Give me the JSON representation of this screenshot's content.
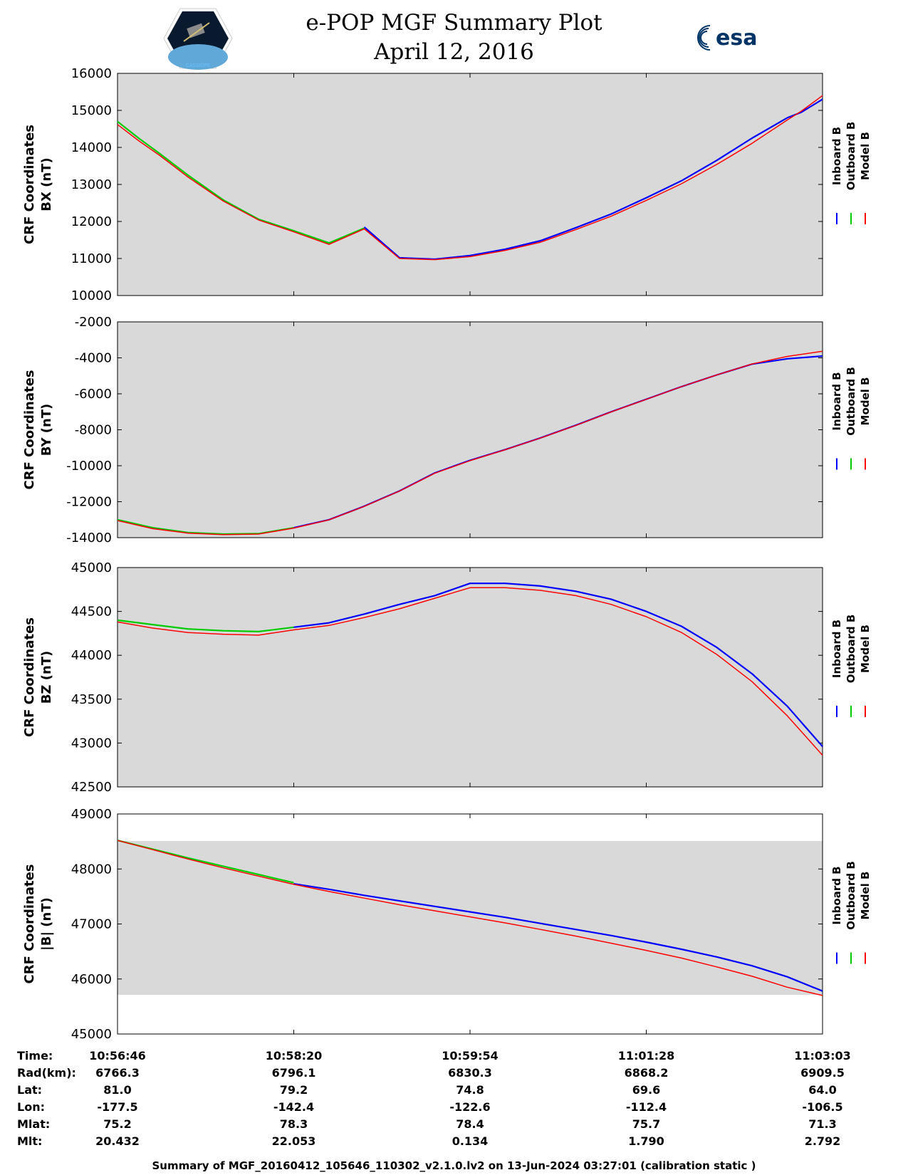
{
  "header": {
    "title_line1": "e-POP MGF Summary Plot",
    "title_line2": "April 12, 2016",
    "logo_left": "CASSIOPE",
    "logo_right": "esa"
  },
  "colors": {
    "inboard": "#0000ff",
    "outboard": "#00cc00",
    "model": "#ff0000",
    "bg": "#d9d9d9"
  },
  "legend": [
    "Inboard B",
    "Outboard B",
    "Model B"
  ],
  "chart_data": [
    {
      "type": "line",
      "ylabel": [
        "CRF Coordinates",
        "BX (nT)"
      ],
      "ylim": [
        10000,
        16000
      ],
      "yticks": [
        "10000",
        "11000",
        "12000",
        "13000",
        "14000",
        "15000",
        "16000"
      ],
      "x": [
        0,
        0.03,
        0.06,
        0.1,
        0.15,
        0.2,
        0.25,
        0.3,
        0.35,
        0.4,
        0.45,
        0.5,
        0.55,
        0.6,
        0.65,
        0.7,
        0.75,
        0.8,
        0.85,
        0.9,
        0.95,
        0.97,
        1.0
      ],
      "series": [
        {
          "name": "Inboard B",
          "values": [
            null,
            null,
            null,
            null,
            null,
            null,
            null,
            null,
            11850,
            11020,
            10980,
            11080,
            11250,
            11480,
            11830,
            12200,
            12640,
            13100,
            13650,
            14250,
            14800,
            14950,
            15300
          ]
        },
        {
          "name": "Outboard B",
          "values": [
            14700,
            14250,
            13830,
            13250,
            12580,
            12060,
            11750,
            11420,
            11820,
            null,
            null,
            null,
            null,
            null,
            null,
            null,
            null,
            null,
            null,
            null,
            null,
            null,
            null
          ]
        },
        {
          "name": "Model B",
          "values": [
            14620,
            14180,
            13780,
            13200,
            12550,
            12040,
            11720,
            11380,
            11800,
            11000,
            10970,
            11050,
            11220,
            11440,
            11780,
            12140,
            12570,
            13020,
            13540,
            14110,
            14740,
            14980,
            15400
          ]
        }
      ]
    },
    {
      "type": "line",
      "ylabel": [
        "CRF Coordinates",
        "BY (nT)"
      ],
      "ylim": [
        -14000,
        -2000
      ],
      "yticks": [
        "-14000",
        "-12000",
        "-10000",
        "-8000",
        "-6000",
        "-4000",
        "-2000"
      ],
      "x": [
        0,
        0.05,
        0.1,
        0.15,
        0.2,
        0.25,
        0.3,
        0.35,
        0.4,
        0.45,
        0.5,
        0.55,
        0.6,
        0.65,
        0.7,
        0.75,
        0.8,
        0.85,
        0.9,
        0.95,
        1.0
      ],
      "series": [
        {
          "name": "Inboard B",
          "values": [
            null,
            null,
            null,
            null,
            null,
            -13450,
            -13000,
            -12250,
            -11400,
            -10400,
            -9700,
            -9100,
            -8450,
            -7750,
            -7000,
            -6300,
            -5600,
            -4950,
            -4350,
            -4050,
            -3900
          ]
        },
        {
          "name": "Outboard B",
          "values": [
            -13000,
            -13450,
            -13720,
            -13800,
            -13780,
            -13450,
            null,
            null,
            null,
            null,
            null,
            null,
            null,
            null,
            null,
            null,
            null,
            null,
            null,
            null,
            null
          ]
        },
        {
          "name": "Model B",
          "values": [
            -13050,
            -13500,
            -13750,
            -13830,
            -13800,
            -13470,
            -13010,
            -12260,
            -11410,
            -10420,
            -9720,
            -9110,
            -8460,
            -7760,
            -7010,
            -6310,
            -5600,
            -4950,
            -4340,
            -3920,
            -3630
          ]
        }
      ]
    },
    {
      "type": "line",
      "ylabel": [
        "CRF Coordinates",
        "BZ (nT)"
      ],
      "ylim": [
        42500,
        45000
      ],
      "yticks": [
        "42500",
        "43000",
        "43500",
        "44000",
        "44500",
        "45000"
      ],
      "x": [
        0,
        0.05,
        0.1,
        0.15,
        0.2,
        0.25,
        0.3,
        0.35,
        0.4,
        0.45,
        0.5,
        0.55,
        0.6,
        0.65,
        0.7,
        0.75,
        0.8,
        0.85,
        0.9,
        0.95,
        1.0
      ],
      "series": [
        {
          "name": "Inboard B",
          "values": [
            null,
            null,
            null,
            null,
            null,
            44320,
            44370,
            44470,
            44580,
            44680,
            44820,
            44820,
            44790,
            44730,
            44640,
            44500,
            44330,
            44090,
            43790,
            43420,
            42960
          ]
        },
        {
          "name": "Outboard B",
          "values": [
            44400,
            44350,
            44300,
            44280,
            44270,
            44320,
            null,
            null,
            null,
            null,
            null,
            null,
            null,
            null,
            null,
            null,
            null,
            null,
            null,
            null,
            null
          ]
        },
        {
          "name": "Model B",
          "values": [
            44380,
            44310,
            44260,
            44240,
            44230,
            44290,
            44340,
            44430,
            44530,
            44650,
            44770,
            44770,
            44740,
            44680,
            44580,
            44440,
            44260,
            44010,
            43700,
            43310,
            42860
          ]
        }
      ]
    },
    {
      "type": "line",
      "ylabel": [
        "CRF Coordinates",
        "|B| (nT)"
      ],
      "ylim": [
        45000,
        49000
      ],
      "yticks": [
        "45000",
        "46000",
        "47000",
        "48000",
        "49000"
      ],
      "x": [
        0,
        0.05,
        0.1,
        0.15,
        0.2,
        0.25,
        0.3,
        0.35,
        0.4,
        0.45,
        0.5,
        0.55,
        0.6,
        0.65,
        0.7,
        0.75,
        0.8,
        0.85,
        0.9,
        0.95,
        1.0
      ],
      "series": [
        {
          "name": "Inboard B",
          "values": [
            null,
            null,
            null,
            null,
            null,
            47730,
            47630,
            47520,
            47420,
            47320,
            47220,
            47120,
            47010,
            46900,
            46790,
            46670,
            46540,
            46400,
            46240,
            46040,
            45780
          ]
        },
        {
          "name": "Outboard B",
          "values": [
            48520,
            48360,
            48200,
            48050,
            47900,
            47750,
            null,
            null,
            null,
            null,
            null,
            null,
            null,
            null,
            null,
            null,
            null,
            null,
            null,
            null,
            null
          ]
        },
        {
          "name": "Model B",
          "values": [
            48520,
            48350,
            48180,
            48020,
            47870,
            47720,
            47590,
            47470,
            47350,
            47240,
            47130,
            47020,
            46900,
            46780,
            46650,
            46520,
            46380,
            46220,
            46050,
            45850,
            45700
          ]
        }
      ]
    }
  ],
  "table": {
    "labels": [
      "Time:",
      "Rad(km):",
      "Lat:",
      "Lon:",
      "Mlat:",
      "Mlt:"
    ],
    "columns": [
      [
        "10:56:46",
        "6766.3",
        "81.0",
        "-177.5",
        "75.2",
        "20.432"
      ],
      [
        "10:58:20",
        "6796.1",
        "79.2",
        "-142.4",
        "78.3",
        "22.053"
      ],
      [
        "10:59:54",
        "6830.3",
        "74.8",
        "-122.6",
        "78.4",
        "0.134"
      ],
      [
        "11:01:28",
        "6868.2",
        "69.6",
        "-112.4",
        "75.7",
        "1.790"
      ],
      [
        "11:03:03",
        "6909.5",
        "64.0",
        "-106.5",
        "71.3",
        "2.792"
      ]
    ]
  },
  "footer": "Summary of MGF_20160412_105646_110302_v2.1.0.lv2 on 13-Jun-2024 03:27:01 (calibration static )"
}
